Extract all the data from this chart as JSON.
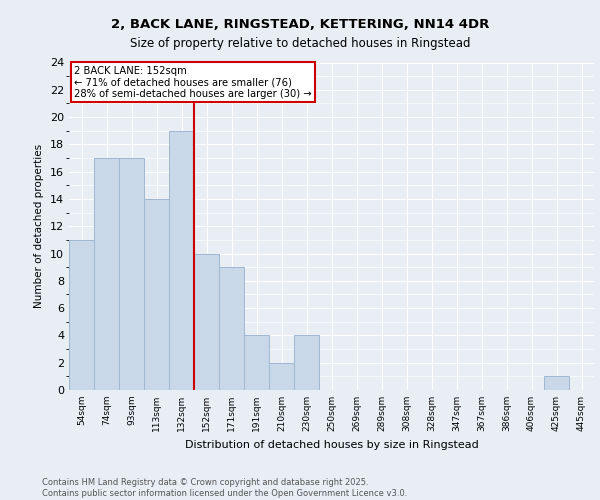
{
  "title_line1": "2, BACK LANE, RINGSTEAD, KETTERING, NN14 4DR",
  "title_line2": "Size of property relative to detached houses in Ringstead",
  "xlabel": "Distribution of detached houses by size in Ringstead",
  "ylabel": "Number of detached properties",
  "categories": [
    "54sqm",
    "74sqm",
    "93sqm",
    "113sqm",
    "132sqm",
    "152sqm",
    "171sqm",
    "191sqm",
    "210sqm",
    "230sqm",
    "250sqm",
    "269sqm",
    "289sqm",
    "308sqm",
    "328sqm",
    "347sqm",
    "367sqm",
    "386sqm",
    "406sqm",
    "425sqm",
    "445sqm"
  ],
  "values": [
    11,
    17,
    17,
    14,
    19,
    10,
    9,
    4,
    2,
    4,
    0,
    0,
    0,
    0,
    0,
    0,
    0,
    0,
    0,
    1,
    0
  ],
  "bar_color": "#c8d8e8",
  "bar_edge_color": "#a0b8d0",
  "redline_after_index": 4,
  "redline_color": "#cc0000",
  "annotation_title": "2 BACK LANE: 152sqm",
  "annotation_line2": "← 71% of detached houses are smaller (76)",
  "annotation_line3": "28% of semi-detached houses are larger (30) →",
  "annotation_box_color": "#ffffff",
  "annotation_box_edge": "#cc0000",
  "ylim": [
    0,
    24
  ],
  "yticks": [
    0,
    2,
    4,
    6,
    8,
    10,
    12,
    14,
    16,
    18,
    20,
    22,
    24
  ],
  "background_color": "#e8eef4",
  "plot_background": "#e8eef4",
  "grid_color": "#ffffff",
  "footer_line1": "Contains HM Land Registry data © Crown copyright and database right 2025.",
  "footer_line2": "Contains public sector information licensed under the Open Government Licence v3.0."
}
